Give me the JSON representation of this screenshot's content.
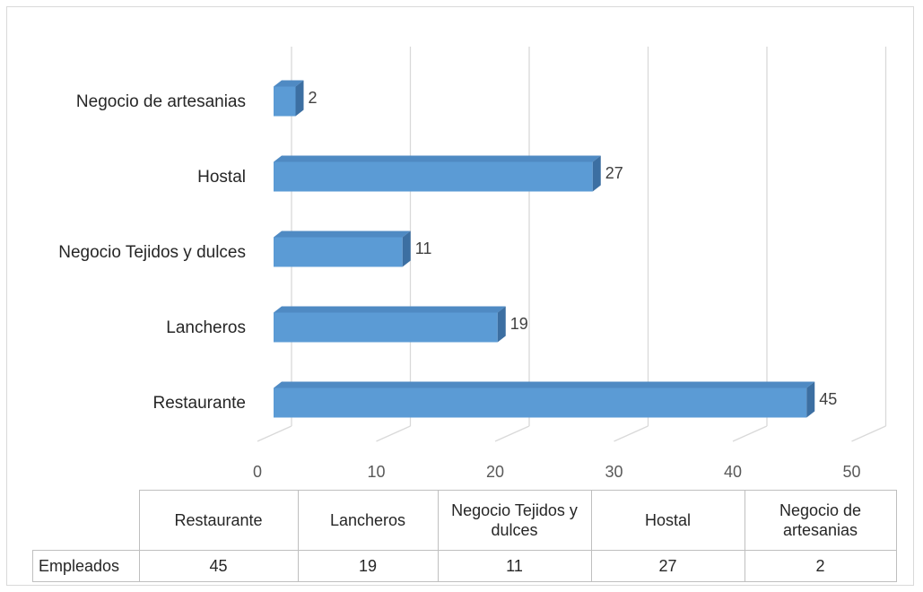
{
  "chart_data": {
    "type": "bar",
    "orientation": "horizontal",
    "three_d": true,
    "categories": [
      "Restaurante",
      "Lancheros",
      "Negocio Tejidos y dulces",
      "Hostal",
      "Negocio de artesanias"
    ],
    "series": [
      {
        "name": "Empleados",
        "values": [
          45,
          19,
          11,
          27,
          2
        ],
        "color": "#5b9bd5"
      }
    ],
    "xlim": [
      0,
      50
    ],
    "x_ticks": [
      "0",
      "10",
      "20",
      "30",
      "40",
      "50"
    ],
    "grid": true,
    "data_labels": [
      "45",
      "19",
      "11",
      "27",
      "2"
    ]
  },
  "data_table": {
    "headers": [
      "Restaurante",
      "Lancheros",
      "Negocio Tejidos y dulces",
      "Hostal",
      "Negocio de artesanias"
    ],
    "row_label": "Empleados",
    "values": [
      "45",
      "19",
      "11",
      "27",
      "2"
    ]
  }
}
